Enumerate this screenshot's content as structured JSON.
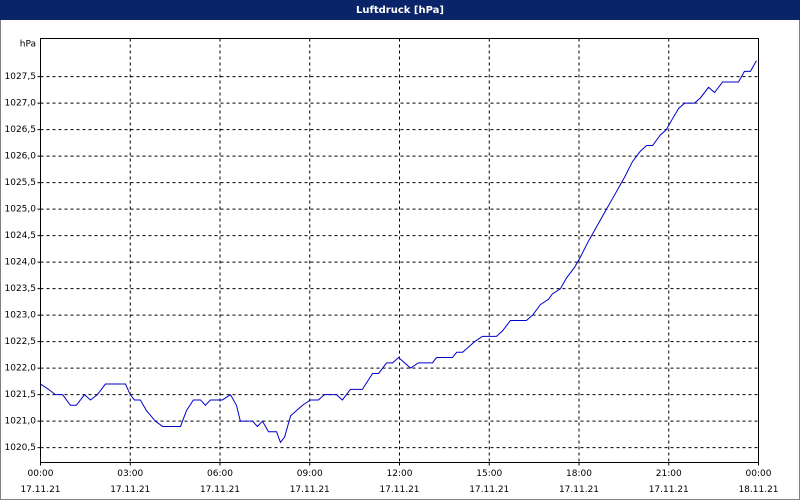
{
  "chart_data": {
    "type": "line",
    "title": "Luftdruck [hPa]",
    "y_label": "hPa",
    "color": "#0000cc",
    "grid": true,
    "x": [
      0,
      0.27,
      0.5,
      0.74,
      1.0,
      1.2,
      1.47,
      1.67,
      1.9,
      2.17,
      2.84,
      3.0,
      3.14,
      3.34,
      3.54,
      3.84,
      4.08,
      4.68,
      4.88,
      5.11,
      5.35,
      5.51,
      5.68,
      6.08,
      6.35,
      6.55,
      6.68,
      7.09,
      7.25,
      7.42,
      7.62,
      7.89,
      8.02,
      8.16,
      8.36,
      8.56,
      8.76,
      9.02,
      9.29,
      9.49,
      9.89,
      10.09,
      10.36,
      10.76,
      11.1,
      11.3,
      11.57,
      11.77,
      11.97,
      12.17,
      12.37,
      12.63,
      13.1,
      13.24,
      13.77,
      13.91,
      14.11,
      14.31,
      14.51,
      14.77,
      15.24,
      15.44,
      15.71,
      16.24,
      16.45,
      16.71,
      16.98,
      17.11,
      17.38,
      17.58,
      17.85,
      18.05,
      18.32,
      18.52,
      18.72,
      18.92,
      19.12,
      19.32,
      19.52,
      19.79,
      20.06,
      20.26,
      20.46,
      20.72,
      20.92,
      21.12,
      21.33,
      21.53,
      21.86,
      22.06,
      22.33,
      22.53,
      22.8,
      23.33,
      23.53,
      23.73,
      23.93
    ],
    "values": [
      1021.7,
      1021.6,
      1021.5,
      1021.5,
      1021.3,
      1021.3,
      1021.5,
      1021.4,
      1021.5,
      1021.7,
      1021.7,
      1021.5,
      1021.4,
      1021.4,
      1021.2,
      1021.0,
      1020.9,
      1020.9,
      1021.2,
      1021.4,
      1021.4,
      1021.3,
      1021.4,
      1021.4,
      1021.5,
      1021.3,
      1021.0,
      1021.0,
      1020.9,
      1021.0,
      1020.8,
      1020.8,
      1020.6,
      1020.7,
      1021.1,
      1021.2,
      1021.3,
      1021.4,
      1021.4,
      1021.5,
      1021.5,
      1021.4,
      1021.6,
      1021.6,
      1021.9,
      1021.9,
      1022.1,
      1022.1,
      1022.2,
      1022.1,
      1022.0,
      1022.1,
      1022.1,
      1022.2,
      1022.2,
      1022.3,
      1022.3,
      1022.4,
      1022.5,
      1022.6,
      1022.6,
      1022.7,
      1022.9,
      1022.9,
      1023.0,
      1023.2,
      1023.3,
      1023.4,
      1023.5,
      1023.7,
      1023.9,
      1024.1,
      1024.4,
      1024.6,
      1024.8,
      1025.0,
      1025.2,
      1025.4,
      1025.6,
      1025.9,
      1026.1,
      1026.2,
      1026.2,
      1026.4,
      1026.5,
      1026.7,
      1026.9,
      1027.0,
      1027.0,
      1027.1,
      1027.3,
      1027.2,
      1027.4,
      1027.4,
      1027.6,
      1027.6,
      1027.8
    ],
    "xlim": [
      0,
      24
    ],
    "xticks": [
      {
        "value": 0,
        "label": "00:00"
      },
      {
        "value": 3,
        "label": "03:00"
      },
      {
        "value": 6,
        "label": "06:00"
      },
      {
        "value": 9,
        "label": "09:00"
      },
      {
        "value": 12,
        "label": "12:00"
      },
      {
        "value": 15,
        "label": "15:00"
      },
      {
        "value": 18,
        "label": "18:00"
      },
      {
        "value": 21,
        "label": "21:00"
      },
      {
        "value": 24,
        "label": "00:00"
      }
    ],
    "xtick_dates": [
      "17.11.21",
      "17.11.21",
      "17.11.21",
      "17.11.21",
      "17.11.21",
      "17.11.21",
      "17.11.21",
      "17.11.21",
      "18.11.21"
    ],
    "ylim": [
      1020.22,
      1028.22
    ],
    "yticks": [
      {
        "value": 1020.5,
        "label": "1020,5"
      },
      {
        "value": 1021.0,
        "label": "1021,0"
      },
      {
        "value": 1021.5,
        "label": "1021,5"
      },
      {
        "value": 1022.0,
        "label": "1022,0"
      },
      {
        "value": 1022.5,
        "label": "1022,5"
      },
      {
        "value": 1023.0,
        "label": "1023,0"
      },
      {
        "value": 1023.5,
        "label": "1023,5"
      },
      {
        "value": 1024.0,
        "label": "1024,0"
      },
      {
        "value": 1024.5,
        "label": "1024,5"
      },
      {
        "value": 1025.0,
        "label": "1025,0"
      },
      {
        "value": 1025.5,
        "label": "1025,5"
      },
      {
        "value": 1026.0,
        "label": "1026,0"
      },
      {
        "value": 1026.5,
        "label": "1026,5"
      },
      {
        "value": 1027.0,
        "label": "1027,0"
      },
      {
        "value": 1027.5,
        "label": "1027,5"
      }
    ]
  }
}
